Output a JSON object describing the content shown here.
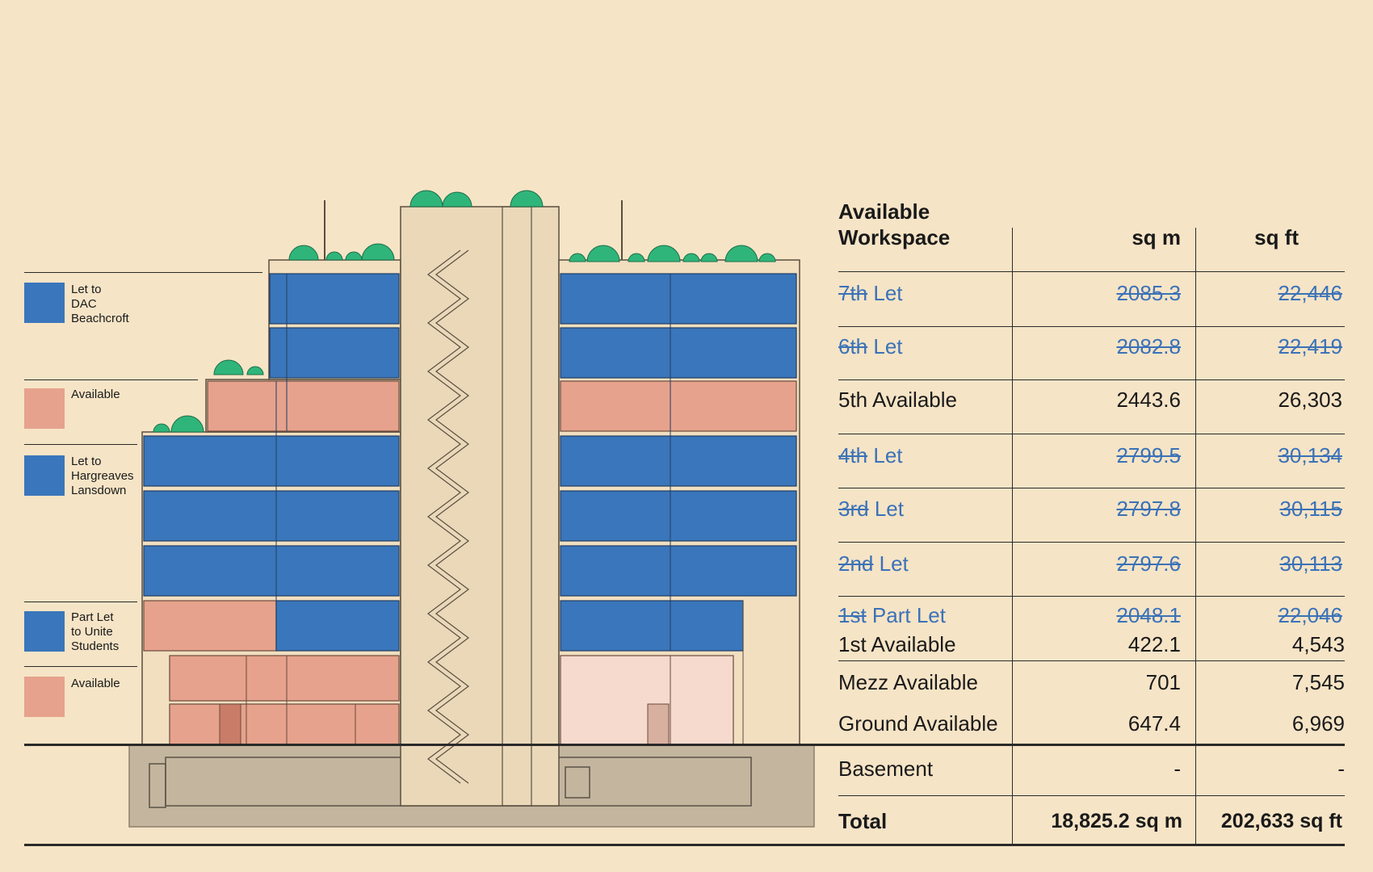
{
  "legend": [
    {
      "label": "Let to\nDAC\nBeachcroft",
      "color": "#3a76bb"
    },
    {
      "label": "Available",
      "color": "#e6a28c"
    },
    {
      "label": "Let to\nHargreaves\nLansdown",
      "color": "#3a76bb"
    },
    {
      "label": "Part Let\nto Unite\nStudents",
      "color": "#3a76bb"
    },
    {
      "label": "Available",
      "color": "#e6a28c"
    }
  ],
  "colors": {
    "let": "#3a76bb",
    "available": "#e6a28c",
    "available_light": "#f5dacd",
    "greenery": "#2fb57a",
    "basement": "#c4b59e",
    "core": "#ead8b9",
    "let_text": "#3b72b8"
  },
  "table": {
    "header": {
      "title_line1": "Available",
      "title_line2": "Workspace",
      "col_sqm": "sq m",
      "col_sqft": "sq ft"
    },
    "rows": [
      {
        "floor": "7th",
        "status": "Let",
        "sqm": "2085.3",
        "sqft": "22,446",
        "let": true
      },
      {
        "floor": "6th",
        "status": "Let",
        "sqm": "2082.8",
        "sqft": "22,419",
        "let": true
      },
      {
        "floor": "5th",
        "status": "Available",
        "sqm": "2443.6",
        "sqft": "26,303",
        "let": false
      },
      {
        "floor": "4th",
        "status": "Let",
        "sqm": "2799.5",
        "sqft": "30,134",
        "let": true
      },
      {
        "floor": "3rd",
        "status": "Let",
        "sqm": "2797.8",
        "sqft": "30,115",
        "let": true
      },
      {
        "floor": "2nd",
        "status": "Let",
        "sqm": "2797.6",
        "sqft": "30,113",
        "let": true
      },
      {
        "floor": "1st",
        "status": "Part Let",
        "sqm": "2048.1",
        "sqft": "22,046",
        "let": true
      },
      {
        "floor": "1st",
        "status": "Available",
        "sqm": "422.1",
        "sqft": "4,543",
        "let": false
      },
      {
        "floor": "Mezz",
        "status": "Available",
        "sqm": "701",
        "sqft": "7,545",
        "let": false
      },
      {
        "floor": "Ground",
        "status": "Available",
        "sqm": "647.4",
        "sqft": "6,969",
        "let": false
      },
      {
        "floor": "Basement",
        "status": "",
        "sqm": "-",
        "sqft": "-",
        "let": false
      }
    ],
    "total": {
      "label": "Total",
      "sqm": "18,825.2 sq m",
      "sqft": "202,633 sq ft"
    }
  }
}
